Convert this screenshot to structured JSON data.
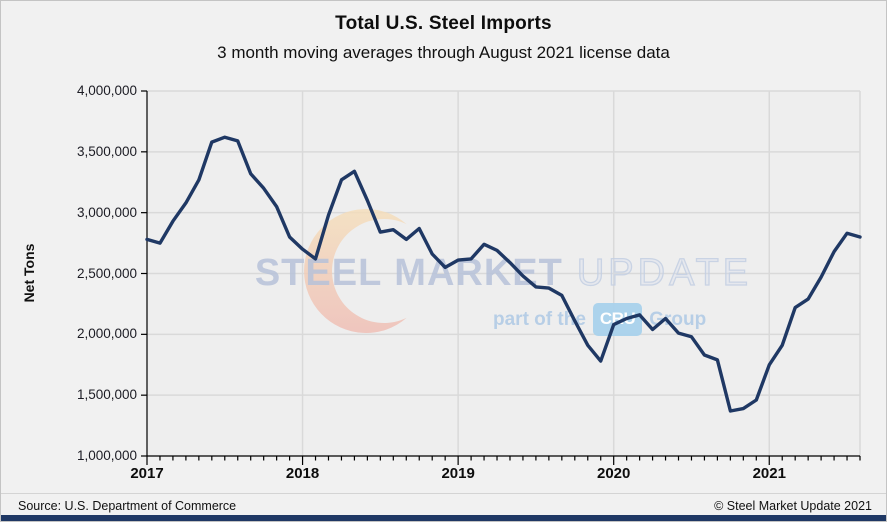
{
  "header": {
    "title": "Total U.S. Steel Imports",
    "subtitle": "3 month moving averages through August 2021 license data"
  },
  "footer": {
    "source": "Source: U.S. Department of Commerce",
    "copyright": "© Steel Market Update 2021"
  },
  "watermark": {
    "word1": "STEEL",
    "word2": "MARKET",
    "word3": "UPDATE",
    "tagline_prefix": "part of the",
    "cru_badge": "CRU",
    "tagline_suffix": "Group"
  },
  "colors": {
    "line": "#1f3864",
    "grid": "#d9d9d9",
    "axis": "#000000",
    "plot_bg": "#eeeeee",
    "page_bg": "#f1f1f1",
    "bottom_bar": "#1f3864",
    "watermark_text": "#b7c2d9",
    "watermark_blue": "#b5cde6",
    "cru_badge_bg": "#a9d2ec",
    "crescent_top": "#f5deb9",
    "crescent_bottom": "#efbbb2"
  },
  "chart_data": {
    "type": "line",
    "title": "Total U.S. Steel Imports",
    "subtitle": "3 month moving averages through August 2021 license data",
    "xlabel": "",
    "ylabel": "Net Tons",
    "ylim": [
      1000000,
      4000000
    ],
    "grid": true,
    "legend": "none",
    "y_ticks": [
      {
        "value": 1000000,
        "label": "1,000,000"
      },
      {
        "value": 1500000,
        "label": "1,500,000"
      },
      {
        "value": 2000000,
        "label": "2,000,000"
      },
      {
        "value": 2500000,
        "label": "2,500,000"
      },
      {
        "value": 3000000,
        "label": "3,000,000"
      },
      {
        "value": 3500000,
        "label": "3,500,000"
      },
      {
        "value": 4000000,
        "label": "4,000,000"
      }
    ],
    "year_ticks": [
      {
        "label": "2017",
        "index": 0
      },
      {
        "label": "2018",
        "index": 12
      },
      {
        "label": "2019",
        "index": 24
      },
      {
        "label": "2020",
        "index": 36
      },
      {
        "label": "2021",
        "index": 48
      }
    ],
    "x": [
      "2017-01",
      "2017-02",
      "2017-03",
      "2017-04",
      "2017-05",
      "2017-06",
      "2017-07",
      "2017-08",
      "2017-09",
      "2017-10",
      "2017-11",
      "2017-12",
      "2018-01",
      "2018-02",
      "2018-03",
      "2018-04",
      "2018-05",
      "2018-06",
      "2018-07",
      "2018-08",
      "2018-09",
      "2018-10",
      "2018-11",
      "2018-12",
      "2019-01",
      "2019-02",
      "2019-03",
      "2019-04",
      "2019-05",
      "2019-06",
      "2019-07",
      "2019-08",
      "2019-09",
      "2019-10",
      "2019-11",
      "2019-12",
      "2020-01",
      "2020-02",
      "2020-03",
      "2020-04",
      "2020-05",
      "2020-06",
      "2020-07",
      "2020-08",
      "2020-09",
      "2020-10",
      "2020-11",
      "2020-12",
      "2021-01",
      "2021-02",
      "2021-03",
      "2021-04",
      "2021-05",
      "2021-06",
      "2021-07",
      "2021-08"
    ],
    "series": [
      {
        "name": "Total U.S. steel imports, 3-month moving average (net tons)",
        "values": [
          2780000,
          2750000,
          2930000,
          3080000,
          3270000,
          3580000,
          3620000,
          3590000,
          3320000,
          3200000,
          3050000,
          2800000,
          2700000,
          2620000,
          2980000,
          3270000,
          3340000,
          3100000,
          2840000,
          2860000,
          2780000,
          2870000,
          2660000,
          2550000,
          2610000,
          2620000,
          2740000,
          2690000,
          2590000,
          2480000,
          2390000,
          2380000,
          2320000,
          2110000,
          1910000,
          1780000,
          2080000,
          2130000,
          2160000,
          2040000,
          2130000,
          2010000,
          1980000,
          1830000,
          1790000,
          1370000,
          1390000,
          1460000,
          1750000,
          1910000,
          2220000,
          2290000,
          2470000,
          2680000,
          2830000,
          2800000
        ]
      }
    ]
  }
}
